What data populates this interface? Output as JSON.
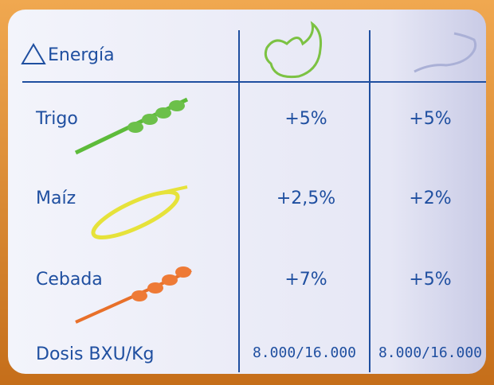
{
  "table": {
    "header": {
      "title": "Energía"
    },
    "rows": [
      [
        "Trigo",
        "+5%",
        "+5%"
      ],
      [
        "Maíz",
        "+2,5%",
        "+2%"
      ],
      [
        "Cebada",
        "+7%",
        "+5%"
      ],
      [
        "Dosis BXU/Kg",
        "8.000/16.000",
        "8.000/16.000"
      ]
    ]
  }
}
